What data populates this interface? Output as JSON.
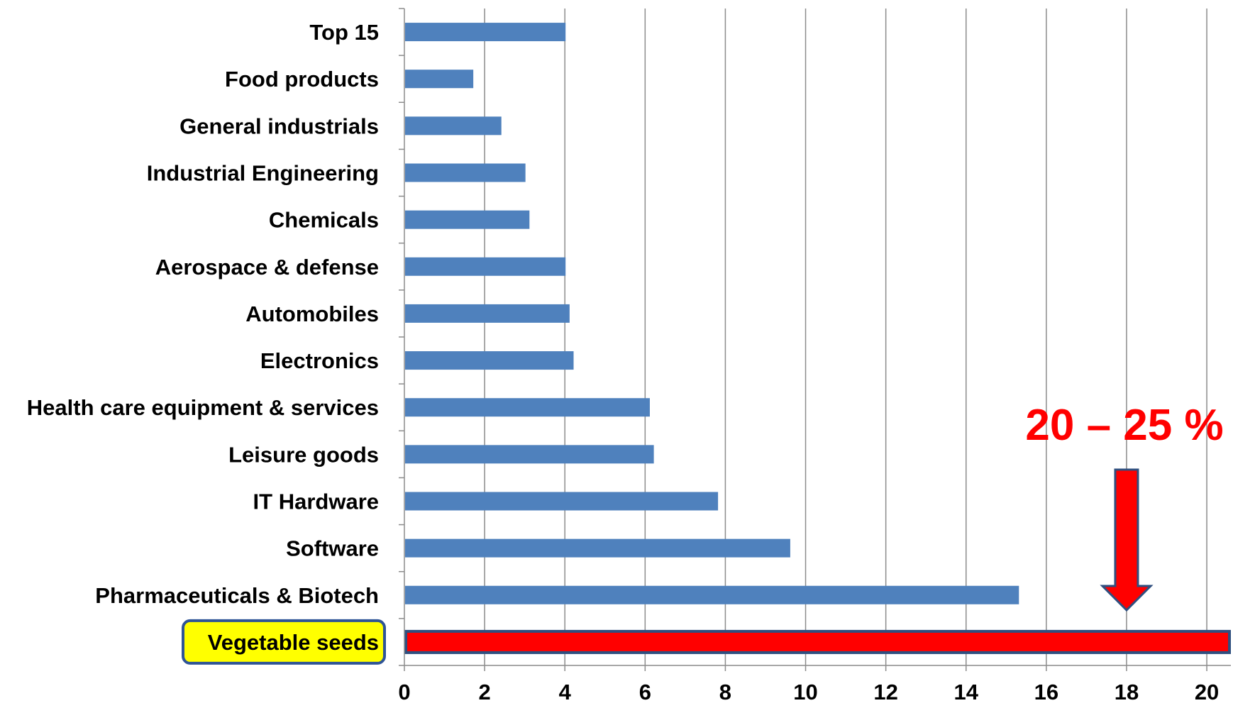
{
  "chart_data": {
    "type": "bar",
    "orientation": "horizontal",
    "categories": [
      "Top 15",
      "Food products",
      "General industrials",
      "Industrial Engineering",
      "Chemicals",
      "Aerospace & defense",
      "Automobiles",
      "Electronics",
      "Health care equipment & services",
      "Leisure goods",
      "IT Hardware",
      "Software",
      "Pharmaceuticals & Biotech",
      "Vegetable seeds"
    ],
    "values": [
      4.0,
      1.7,
      2.4,
      3.0,
      3.1,
      4.0,
      4.1,
      4.2,
      6.1,
      6.2,
      7.8,
      9.6,
      15.3,
      20.6
    ],
    "highlighted_category": "Vegetable seeds",
    "xlim": [
      0,
      20.6
    ],
    "xticks": [
      0,
      2,
      4,
      6,
      8,
      10,
      12,
      14,
      16,
      18,
      20
    ],
    "grid": true,
    "annotation": {
      "text": "20 – 25 %",
      "arrow_at_value": 18
    },
    "title": "",
    "xlabel": "",
    "ylabel": ""
  },
  "colors": {
    "bar": "#4f81bd",
    "highlight_bar": "#ff0000",
    "highlight_bar_border": "#2f4f7f",
    "highlight_label_bg": "#ffff00",
    "highlight_label_border": "#2f5496",
    "annotation": "#ff0000",
    "grid": "#8c8c8c"
  }
}
